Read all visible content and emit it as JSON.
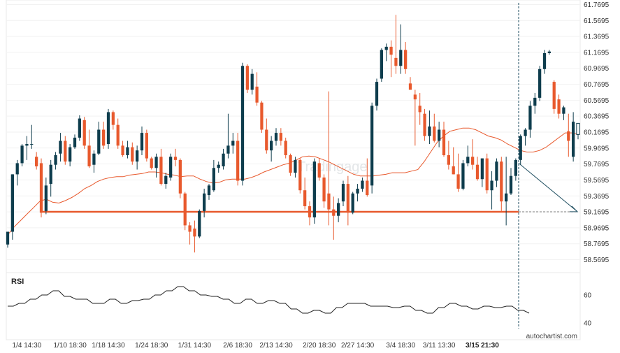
{
  "chart_data": {
    "type": "candlestick",
    "price_axis": {
      "ticks": [
        "61.7695",
        "61.5695",
        "61.3695",
        "61.1695",
        "60.9695",
        "60.7695",
        "60.5695",
        "60.3695",
        "60.1695",
        "59.9695",
        "59.7695",
        "59.5695",
        "59.3695",
        "59.1695",
        "58.9695",
        "58.7695",
        "58.5695"
      ],
      "ylim": [
        58.46,
        61.8
      ]
    },
    "time_axis": {
      "labels": [
        "1/4 14:30",
        "1/10 18:30",
        "1/18 14:30",
        "1/24 18:30",
        "1/31 14:30",
        "2/6 18:30",
        "2/13 14:30",
        "2/20 18:30",
        "2/27 14:30",
        "3/4 18:30",
        "3/11 13:30",
        "3/15 21:30"
      ],
      "label_index": [
        4,
        13,
        21,
        30,
        39,
        48,
        56,
        65,
        73,
        82,
        90,
        99
      ],
      "current_label": "3/15 21:30"
    },
    "candles": [
      [
        58.76,
        58.92,
        58.72,
        58.92
      ],
      [
        58.92,
        59.64,
        58.82,
        59.64
      ],
      [
        59.64,
        59.82,
        59.5,
        59.78
      ],
      [
        59.78,
        60.02,
        59.74,
        60.0
      ],
      [
        60.0,
        60.12,
        59.82,
        60.02
      ],
      [
        60.02,
        60.26,
        59.96,
        60.02
      ],
      [
        59.86,
        59.92,
        59.7,
        59.74
      ],
      [
        59.78,
        59.84,
        59.1,
        59.16
      ],
      [
        59.18,
        59.6,
        59.14,
        59.5
      ],
      [
        59.52,
        59.82,
        59.36,
        59.76
      ],
      [
        59.76,
        59.92,
        59.7,
        59.88
      ],
      [
        59.9,
        60.16,
        59.8,
        60.06
      ],
      [
        60.06,
        60.12,
        59.76,
        59.8
      ],
      [
        59.8,
        60.02,
        59.74,
        59.98
      ],
      [
        59.98,
        60.14,
        59.96,
        60.1
      ],
      [
        60.1,
        60.38,
        60.06,
        60.34
      ],
      [
        60.32,
        60.36,
        59.96,
        60.0
      ],
      [
        60.0,
        60.2,
        59.72,
        59.74
      ],
      [
        59.76,
        59.94,
        59.66,
        59.9
      ],
      [
        59.9,
        60.3,
        59.88,
        60.2
      ],
      [
        60.2,
        60.3,
        59.96,
        60.0
      ],
      [
        60.02,
        60.46,
        59.96,
        60.42
      ],
      [
        60.42,
        60.44,
        60.2,
        60.26
      ],
      [
        60.26,
        60.34,
        59.96,
        60.0
      ],
      [
        60.0,
        60.06,
        59.86,
        59.88
      ],
      [
        59.88,
        60.06,
        59.84,
        59.98
      ],
      [
        59.98,
        60.04,
        59.76,
        59.8
      ],
      [
        59.8,
        60.0,
        59.7,
        59.94
      ],
      [
        59.94,
        60.24,
        59.88,
        60.16
      ],
      [
        60.16,
        60.2,
        59.8,
        59.84
      ],
      [
        59.84,
        59.86,
        59.7,
        59.72
      ],
      [
        59.72,
        59.9,
        59.6,
        59.86
      ],
      [
        59.86,
        59.96,
        59.5,
        59.52
      ],
      [
        59.52,
        59.66,
        59.46,
        59.62
      ],
      [
        59.6,
        59.9,
        59.56,
        59.86
      ],
      [
        59.86,
        59.96,
        59.74,
        59.82
      ],
      [
        59.82,
        59.84,
        59.34,
        59.4
      ],
      [
        59.4,
        59.42,
        58.94,
        59.0
      ],
      [
        59.0,
        59.04,
        58.76,
        58.92
      ],
      [
        58.96,
        59.06,
        58.66,
        58.86
      ],
      [
        58.86,
        59.2,
        58.84,
        59.18
      ],
      [
        59.18,
        59.46,
        59.1,
        59.4
      ],
      [
        59.38,
        59.52,
        59.32,
        59.5
      ],
      [
        59.44,
        59.82,
        59.42,
        59.72
      ],
      [
        59.72,
        59.8,
        59.66,
        59.76
      ],
      [
        59.74,
        59.96,
        59.7,
        59.9
      ],
      [
        59.9,
        60.4,
        59.84,
        60.0
      ],
      [
        60.0,
        60.16,
        59.9,
        60.06
      ],
      [
        60.06,
        60.16,
        59.5,
        59.56
      ],
      [
        59.56,
        61.04,
        59.5,
        61.0
      ],
      [
        61.0,
        61.02,
        60.66,
        60.7
      ],
      [
        60.7,
        60.96,
        60.64,
        60.9
      ],
      [
        60.74,
        60.92,
        60.5,
        60.54
      ],
      [
        60.54,
        60.56,
        60.16,
        60.2
      ],
      [
        60.2,
        60.34,
        59.9,
        59.94
      ],
      [
        59.94,
        60.12,
        59.8,
        60.06
      ],
      [
        60.06,
        60.22,
        60.0,
        60.16
      ],
      [
        60.16,
        60.22,
        60.0,
        60.06
      ],
      [
        60.06,
        60.1,
        59.84,
        59.88
      ],
      [
        59.88,
        59.9,
        59.62,
        59.66
      ],
      [
        59.66,
        59.86,
        59.6,
        59.82
      ],
      [
        59.82,
        59.84,
        59.4,
        59.44
      ],
      [
        59.44,
        59.6,
        59.2,
        59.24
      ],
      [
        59.24,
        59.3,
        59.0,
        59.1
      ],
      [
        59.1,
        59.84,
        59.02,
        59.8
      ],
      [
        59.78,
        59.84,
        59.56,
        59.6
      ],
      [
        59.6,
        59.64,
        59.22,
        59.3
      ],
      [
        59.4,
        60.68,
        59.0,
        59.2
      ],
      [
        59.2,
        59.36,
        58.82,
        59.12
      ],
      [
        59.12,
        59.34,
        59.04,
        59.28
      ],
      [
        59.3,
        59.56,
        59.24,
        59.52
      ],
      [
        59.52,
        59.62,
        59.0,
        59.16
      ],
      [
        59.16,
        59.42,
        59.14,
        59.4
      ],
      [
        59.4,
        59.52,
        59.3,
        59.46
      ],
      [
        59.46,
        59.6,
        59.42,
        59.56
      ],
      [
        59.56,
        59.84,
        59.36,
        59.38
      ],
      [
        59.5,
        60.54,
        59.4,
        60.5
      ],
      [
        60.5,
        60.84,
        60.44,
        60.8
      ],
      [
        60.84,
        61.22,
        60.8,
        61.2
      ],
      [
        61.2,
        61.28,
        61.06,
        61.24
      ],
      [
        61.24,
        61.32,
        60.86,
        61.14
      ],
      [
        61.1,
        61.64,
        60.9,
        61.0
      ],
      [
        61.0,
        61.52,
        60.9,
        61.2
      ],
      [
        61.2,
        61.3,
        60.9,
        60.96
      ],
      [
        60.78,
        60.86,
        60.72,
        60.7
      ],
      [
        60.64,
        60.7,
        60.0,
        60.58
      ],
      [
        60.5,
        60.66,
        60.26,
        60.42
      ],
      [
        60.4,
        60.46,
        60.06,
        60.12
      ],
      [
        60.12,
        60.44,
        60.02,
        60.24
      ],
      [
        60.24,
        60.4,
        60.04,
        60.06
      ],
      [
        60.06,
        60.3,
        59.98,
        60.2
      ],
      [
        60.2,
        60.3,
        59.86,
        59.88
      ],
      [
        59.88,
        60.06,
        59.7,
        59.76
      ],
      [
        59.74,
        59.98,
        59.64,
        59.64
      ],
      [
        59.64,
        59.9,
        59.42,
        59.46
      ],
      [
        59.46,
        59.82,
        59.44,
        59.78
      ],
      [
        59.78,
        60.0,
        59.74,
        59.86
      ],
      [
        59.86,
        60.08,
        59.7,
        59.76
      ],
      [
        59.76,
        59.86,
        59.56,
        59.58
      ],
      [
        59.58,
        59.84,
        59.48,
        59.84
      ],
      [
        59.84,
        59.9,
        59.4,
        59.44
      ],
      [
        59.44,
        59.68,
        59.2,
        59.56
      ],
      [
        59.56,
        59.84,
        59.48,
        59.8
      ],
      [
        59.8,
        59.86,
        59.18,
        59.3
      ],
      [
        59.3,
        59.86,
        59.0,
        59.4
      ],
      [
        59.4,
        59.72,
        59.38,
        59.62
      ],
      [
        59.62,
        59.84,
        59.56,
        59.82
      ],
      [
        59.82,
        60.14,
        59.76,
        60.12
      ],
      [
        60.12,
        60.22,
        60.0,
        60.2
      ],
      [
        60.2,
        60.56,
        60.1,
        60.5
      ],
      [
        60.5,
        60.66,
        60.4,
        60.6
      ],
      [
        60.6,
        61.0,
        60.56,
        60.96
      ],
      [
        60.96,
        61.2,
        60.9,
        61.16
      ],
      [
        61.16,
        61.2,
        61.14,
        61.18
      ],
      [
        60.8,
        60.82,
        60.4,
        60.46
      ],
      [
        60.58,
        60.64,
        60.34,
        60.4
      ],
      [
        60.4,
        60.5,
        60.32,
        60.48
      ],
      [
        60.18,
        60.4,
        59.86,
        60.06
      ],
      [
        59.86,
        60.42,
        59.8,
        60.3
      ],
      [
        60.14,
        60.28,
        60.08,
        60.28
      ]
    ],
    "moving_average": [
      58.88,
      58.98,
      59.06,
      59.14,
      59.22,
      59.3,
      59.33,
      59.29,
      59.28,
      59.31,
      59.35,
      59.4,
      59.46,
      59.5,
      59.55,
      59.58,
      59.6,
      59.61,
      59.61,
      59.63,
      59.64,
      59.65,
      59.67,
      59.67,
      59.66,
      59.64,
      59.63,
      59.61,
      59.62,
      59.62,
      59.58,
      59.55,
      59.53,
      59.54,
      59.57,
      59.58,
      59.58,
      59.58,
      59.6,
      59.63,
      59.67,
      59.7,
      59.73,
      59.76,
      59.78,
      59.82,
      59.86,
      59.87,
      59.86,
      59.83,
      59.8,
      59.76,
      59.72,
      59.68,
      59.64,
      59.62,
      59.62,
      59.62,
      59.63,
      59.64,
      59.66,
      59.66,
      59.66,
      59.68,
      59.7,
      59.8,
      59.92,
      60.04,
      60.12,
      60.18,
      60.2,
      60.22,
      60.22,
      60.2,
      60.16,
      60.12,
      60.1,
      60.07,
      60.02,
      59.98,
      59.94,
      59.92,
      59.92,
      59.94,
      59.98,
      60.04,
      60.1,
      60.16,
      60.16,
      60.14
    ],
    "support_level": 59.17,
    "forecast_target": 59.18,
    "indicator": {
      "name": "RSI",
      "ticks": [
        60,
        40
      ],
      "ylim": [
        32,
        72
      ],
      "values": [
        52,
        52,
        54,
        54,
        57,
        57,
        60,
        60,
        63,
        63,
        59,
        59,
        57,
        57,
        57,
        54,
        54,
        54,
        57,
        57,
        54,
        54,
        56,
        56,
        57,
        57,
        60,
        60,
        63,
        63,
        66,
        66,
        63,
        63,
        60,
        60,
        59,
        59,
        57,
        57,
        54,
        54,
        57,
        57,
        54,
        54,
        56,
        56,
        54,
        54,
        50,
        50,
        47,
        47,
        49,
        49,
        47,
        47,
        51,
        51,
        54,
        54,
        54,
        54,
        52,
        52,
        52,
        52,
        51,
        51,
        52,
        52,
        49,
        49,
        47,
        47,
        51,
        51,
        54,
        54,
        52,
        52,
        50,
        50,
        52,
        52,
        51,
        51,
        52,
        52,
        49,
        49,
        47
      ]
    },
    "colors": {
      "bull": "#0e3d4d",
      "bear": "#e8592d",
      "ma": "#e8592d",
      "support": "#e8592d",
      "forecast": "#1f4e60",
      "indicator": "#222222"
    },
    "brand": "autochartist.com",
    "watermark": "Tradingage"
  }
}
